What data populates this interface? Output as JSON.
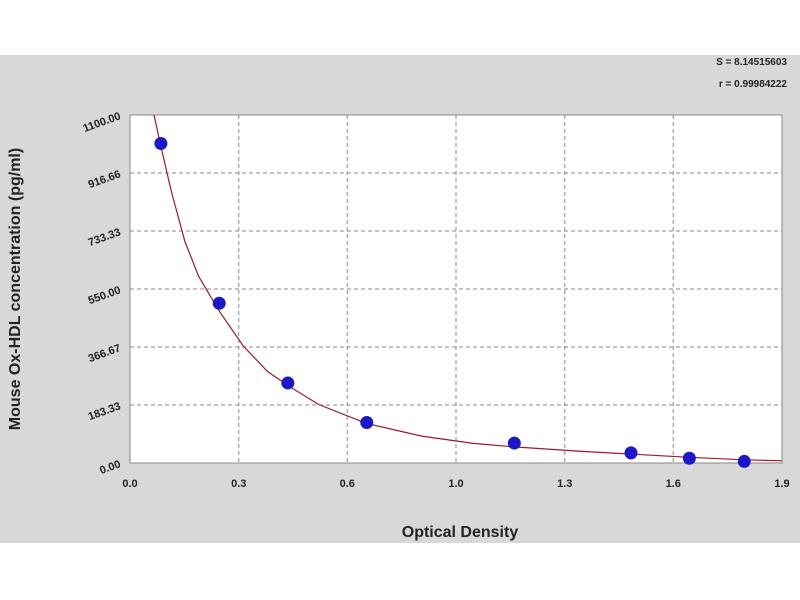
{
  "chart_data": {
    "type": "scatter",
    "title": "",
    "xlabel": "Optical Density",
    "ylabel": "Mouse Ox-HDL concentration (pg/ml)",
    "xlim": [
      0,
      1.9
    ],
    "ylim": [
      0,
      1100
    ],
    "x_ticks": [
      "0.0",
      "0.3",
      "0.6",
      "1.0",
      "1.3",
      "1.6",
      "1.9"
    ],
    "x_tick_values": [
      0,
      0.317,
      0.633,
      0.95,
      1.267,
      1.583,
      1.9
    ],
    "y_ticks": [
      "0.00",
      "183.33",
      "366.67",
      "550.00",
      "733.33",
      "916.66",
      "1100.00"
    ],
    "y_tick_values": [
      0,
      183.33,
      366.67,
      550,
      733.33,
      916.66,
      1100
    ],
    "grid": true,
    "stats": [
      "S = 8.14515603",
      "r = 0.99984222"
    ],
    "points": {
      "x": [
        0.09,
        0.26,
        0.46,
        0.69,
        1.12,
        1.46,
        1.63,
        1.79
      ],
      "y": [
        1010,
        505,
        253,
        128,
        63,
        32,
        15,
        5
      ]
    },
    "fit_curve": {
      "x": [
        0.07,
        0.09,
        0.12,
        0.16,
        0.2,
        0.26,
        0.33,
        0.4,
        0.46,
        0.55,
        0.69,
        0.85,
        1.0,
        1.12,
        1.3,
        1.46,
        1.63,
        1.79,
        1.9
      ],
      "y": [
        1100,
        1000,
        860,
        700,
        590,
        480,
        370,
        290,
        245,
        185,
        125,
        85,
        62,
        51,
        38,
        28,
        18,
        10,
        7
      ]
    },
    "colors": {
      "frame_bg": "#d8d8d8",
      "plot_bg": "#ffffff",
      "grid": "#8a8a8a",
      "curve": "#a0192a",
      "point": "#1c18c8"
    }
  }
}
